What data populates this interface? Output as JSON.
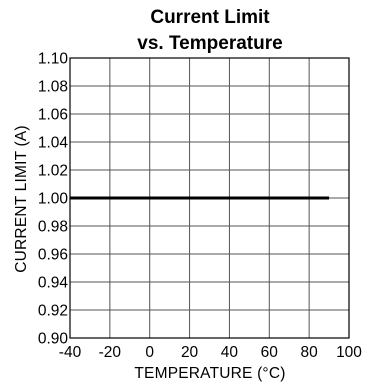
{
  "chart_data": {
    "type": "line",
    "title_lines": [
      "Current Limit",
      "vs. Temperature"
    ],
    "xlabel": "TEMPERATURE (°C)",
    "ylabel": "CURRENT LIMIT (A)",
    "xlim": [
      -40,
      100
    ],
    "ylim": [
      0.9,
      1.1
    ],
    "xticks": [
      -40,
      -20,
      0,
      20,
      40,
      60,
      80,
      100
    ],
    "xtick_labels": [
      "-40",
      "-20",
      "0",
      "20",
      "40",
      "60",
      "80",
      "100"
    ],
    "yticks": [
      0.9,
      0.92,
      0.94,
      0.96,
      0.98,
      1.0,
      1.02,
      1.04,
      1.06,
      1.08,
      1.1
    ],
    "ytick_labels": [
      "0.90",
      "0.92",
      "0.94",
      "0.96",
      "0.98",
      "1.00",
      "1.02",
      "1.04",
      "1.06",
      "1.08",
      "1.10"
    ],
    "grid": true,
    "legend": "none",
    "series": [
      {
        "x": [
          -40,
          90
        ],
        "y": [
          1.0,
          1.0
        ],
        "color": "#000000"
      }
    ]
  }
}
